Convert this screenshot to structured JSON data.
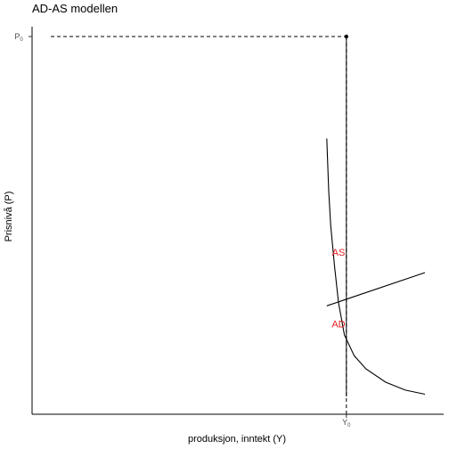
{
  "chart_data": {
    "type": "line",
    "title": "AD-AS modellen",
    "xlabel": "produksjon, inntekt (Y)",
    "ylabel": "Prisnivå (P)",
    "xlim": [
      0,
      10
    ],
    "ylim": [
      0,
      10
    ],
    "grid": false,
    "ticks": {
      "x": [
        {
          "base": "Y",
          "sub": "0",
          "value": 8
        }
      ],
      "y": [
        {
          "base": "P",
          "sub": "0",
          "value": 10
        }
      ]
    },
    "equilibrium": {
      "x": 8,
      "y": 10
    },
    "series": [
      {
        "name": "AS",
        "color": "#e41a1c",
        "x": [
          7.5,
          10
        ],
        "y": [
          2.87,
          3.75
        ]
      },
      {
        "name": "AD",
        "color": "#e41a1c",
        "x": [
          7.5,
          7.55,
          7.6,
          7.7,
          7.8,
          7.95,
          8.2,
          8.5,
          9.0,
          9.5,
          10.0
        ],
        "y": [
          7.3,
          5.9,
          5.0,
          3.9,
          2.95,
          2.1,
          1.55,
          1.2,
          0.85,
          0.64,
          0.53
        ]
      }
    ],
    "guides": {
      "horizontal_dashed_y": 10,
      "vertical_dashed_x": 8,
      "vertical_solid_x": 8
    }
  }
}
